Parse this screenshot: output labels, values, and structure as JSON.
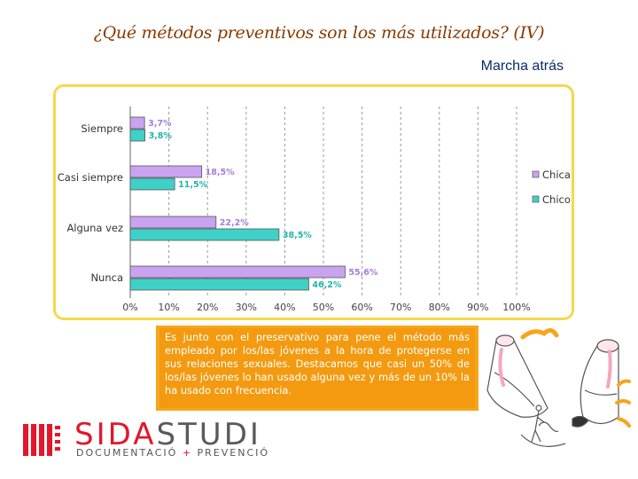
{
  "title": "¿Qué métodos preventivos son los más utilizados? (IV)",
  "subtitle": "Marcha atrás",
  "note": "Es junto con el preservativo para pene el método más empleado por los/las jóvenes a la hora de protegerse en sus relaciones sexuales. Destacamos que casi un 50% de los/las jóvenes lo han usado alguna vez y más de un 10% la ha usado con frecuencia.",
  "brand": {
    "part1": "SIDA",
    "part2": "STUDI",
    "tagline_a": "DOCUMENTACIÓ",
    "tagline_plus": "+",
    "tagline_b": "PREVENCIÓ"
  },
  "colors": {
    "chica": "#c9a3f0",
    "chico": "#3fd0c8",
    "frame": "#f6d84a",
    "note_bg": "#f7a51a",
    "title": "#8a3a00"
  },
  "chart_data": {
    "type": "bar",
    "orientation": "horizontal",
    "categories": [
      "Siempre",
      "Casi siempre",
      "Alguna vez",
      "Nunca"
    ],
    "series": [
      {
        "name": "Chica",
        "values": [
          3.7,
          18.5,
          22.2,
          55.6
        ],
        "labels": [
          "3,7%",
          "18,5%",
          "22,2%",
          "55,6%"
        ]
      },
      {
        "name": "Chico",
        "values": [
          3.8,
          11.5,
          38.5,
          46.2
        ],
        "labels": [
          "3,8%",
          "11,5%",
          "38,5%",
          "46,2%"
        ]
      }
    ],
    "xlim": [
      0,
      100
    ],
    "xticks": [
      "0%",
      "10%",
      "20%",
      "30%",
      "40%",
      "50%",
      "60%",
      "70%",
      "80%",
      "90%",
      "100%"
    ],
    "grid": true,
    "legend": "right"
  }
}
